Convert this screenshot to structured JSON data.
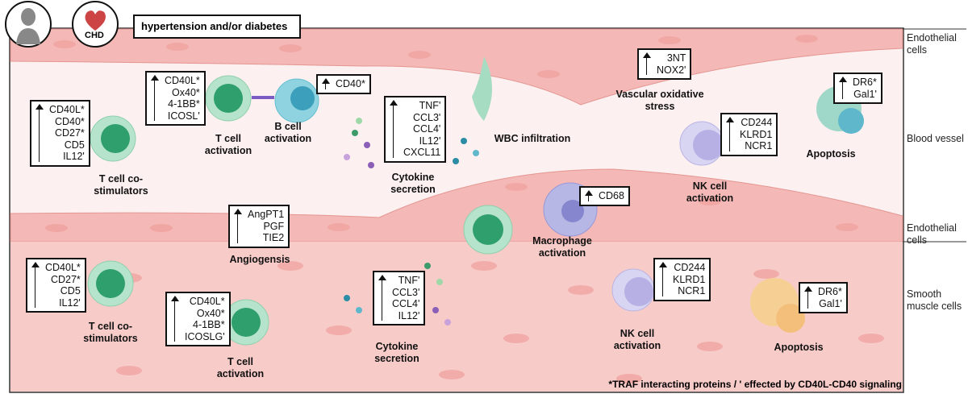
{
  "header": {
    "condition": "hypertension and/or diabetes",
    "icon_label": "CHD"
  },
  "side_labels": [
    "Endothelial cells",
    "Blood vessel",
    "Endothelial cells",
    "Smooth muscle cells"
  ],
  "panels": [
    {
      "label": "T cell co-stimulators",
      "markers": [
        "CD40L*",
        "CD40*",
        "CD27*",
        "CD5",
        "IL12'"
      ]
    },
    {
      "label": "T cell activation",
      "markers": [
        "CD40L*",
        "Ox40*",
        "4-1BB*",
        "ICOSL'"
      ]
    },
    {
      "label": "B cell activation",
      "markers": [
        "CD40*"
      ]
    },
    {
      "label": "Cytokine secretion",
      "markers": [
        "TNF'",
        "CCL3'",
        "CCL4'",
        "IL12'",
        "CXCL11"
      ]
    },
    {
      "label": "WBC infiltration"
    },
    {
      "label": "Vascular oxidative stress",
      "markers": [
        "3NT",
        "NOX2'"
      ]
    },
    {
      "label": "NK cell activation",
      "markers": [
        "CD244",
        "KLRD1",
        "NCR1"
      ]
    },
    {
      "label": "Apoptosis",
      "markers": [
        "DR6*",
        "Gal1'"
      ]
    },
    {
      "label": "Angiogensis",
      "markers": [
        "AngPT1",
        "PGF",
        "TIE2"
      ]
    },
    {
      "label": "Macrophage activation",
      "markers": [
        "CD68"
      ]
    },
    {
      "label": "T cell co-stimulators",
      "markers": [
        "CD40L*",
        "CD27*",
        "CD5",
        "IL12'"
      ]
    },
    {
      "label": "T cell activation",
      "markers": [
        "CD40L*",
        "Ox40*",
        "4-1BB*",
        "ICOSLG'"
      ]
    },
    {
      "label": "Cytokine secretion",
      "markers": [
        "TNF'",
        "CCL3'",
        "CCL4'",
        "IL12'"
      ]
    },
    {
      "label": "NK cell activation",
      "markers": [
        "CD244",
        "KLRD1",
        "NCR1"
      ]
    },
    {
      "label": "Apoptosis",
      "markers": [
        "DR6*",
        "Gal1'"
      ]
    }
  ],
  "footnote": "*TRAF interacting proteins / ' effected by CD40L-CD40 signaling"
}
